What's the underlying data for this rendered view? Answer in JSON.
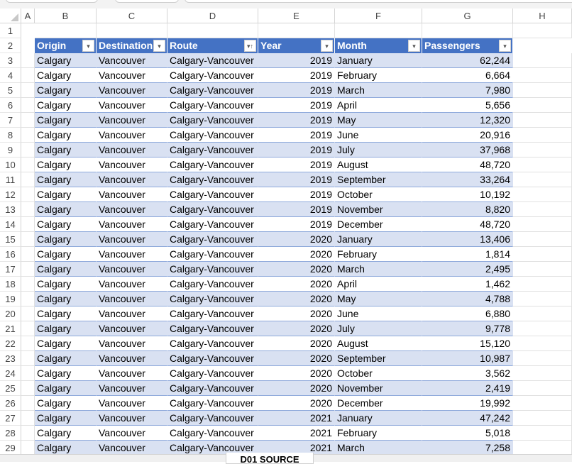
{
  "columns": [
    "A",
    "B",
    "C",
    "D",
    "E",
    "F",
    "G",
    "H"
  ],
  "table": {
    "headers": [
      "Origin",
      "Destination",
      "Route",
      "Year",
      "Month",
      "Passengers"
    ],
    "rows": [
      [
        "Calgary",
        "Vancouver",
        "Calgary-Vancouver",
        "2019",
        "January",
        "62,244"
      ],
      [
        "Calgary",
        "Vancouver",
        "Calgary-Vancouver",
        "2019",
        "February",
        "6,664"
      ],
      [
        "Calgary",
        "Vancouver",
        "Calgary-Vancouver",
        "2019",
        "March",
        "7,980"
      ],
      [
        "Calgary",
        "Vancouver",
        "Calgary-Vancouver",
        "2019",
        "April",
        "5,656"
      ],
      [
        "Calgary",
        "Vancouver",
        "Calgary-Vancouver",
        "2019",
        "May",
        "12,320"
      ],
      [
        "Calgary",
        "Vancouver",
        "Calgary-Vancouver",
        "2019",
        "June",
        "20,916"
      ],
      [
        "Calgary",
        "Vancouver",
        "Calgary-Vancouver",
        "2019",
        "July",
        "37,968"
      ],
      [
        "Calgary",
        "Vancouver",
        "Calgary-Vancouver",
        "2019",
        "August",
        "48,720"
      ],
      [
        "Calgary",
        "Vancouver",
        "Calgary-Vancouver",
        "2019",
        "September",
        "33,264"
      ],
      [
        "Calgary",
        "Vancouver",
        "Calgary-Vancouver",
        "2019",
        "October",
        "10,192"
      ],
      [
        "Calgary",
        "Vancouver",
        "Calgary-Vancouver",
        "2019",
        "November",
        "8,820"
      ],
      [
        "Calgary",
        "Vancouver",
        "Calgary-Vancouver",
        "2019",
        "December",
        "48,720"
      ],
      [
        "Calgary",
        "Vancouver",
        "Calgary-Vancouver",
        "2020",
        "January",
        "13,406"
      ],
      [
        "Calgary",
        "Vancouver",
        "Calgary-Vancouver",
        "2020",
        "February",
        "1,814"
      ],
      [
        "Calgary",
        "Vancouver",
        "Calgary-Vancouver",
        "2020",
        "March",
        "2,495"
      ],
      [
        "Calgary",
        "Vancouver",
        "Calgary-Vancouver",
        "2020",
        "April",
        "1,462"
      ],
      [
        "Calgary",
        "Vancouver",
        "Calgary-Vancouver",
        "2020",
        "May",
        "4,788"
      ],
      [
        "Calgary",
        "Vancouver",
        "Calgary-Vancouver",
        "2020",
        "June",
        "6,880"
      ],
      [
        "Calgary",
        "Vancouver",
        "Calgary-Vancouver",
        "2020",
        "July",
        "9,778"
      ],
      [
        "Calgary",
        "Vancouver",
        "Calgary-Vancouver",
        "2020",
        "August",
        "15,120"
      ],
      [
        "Calgary",
        "Vancouver",
        "Calgary-Vancouver",
        "2020",
        "September",
        "10,987"
      ],
      [
        "Calgary",
        "Vancouver",
        "Calgary-Vancouver",
        "2020",
        "October",
        "3,562"
      ],
      [
        "Calgary",
        "Vancouver",
        "Calgary-Vancouver",
        "2020",
        "November",
        "2,419"
      ],
      [
        "Calgary",
        "Vancouver",
        "Calgary-Vancouver",
        "2020",
        "December",
        "19,992"
      ],
      [
        "Calgary",
        "Vancouver",
        "Calgary-Vancouver",
        "2021",
        "January",
        "47,242"
      ],
      [
        "Calgary",
        "Vancouver",
        "Calgary-Vancouver",
        "2021",
        "February",
        "5,018"
      ],
      [
        "Calgary",
        "Vancouver",
        "Calgary-Vancouver",
        "2021",
        "March",
        "7,258"
      ]
    ],
    "sorted_column": "Route",
    "header_color": "#4472c4",
    "band_color": "#d9e1f2"
  },
  "sheet_tab": "D01 SOURCE"
}
